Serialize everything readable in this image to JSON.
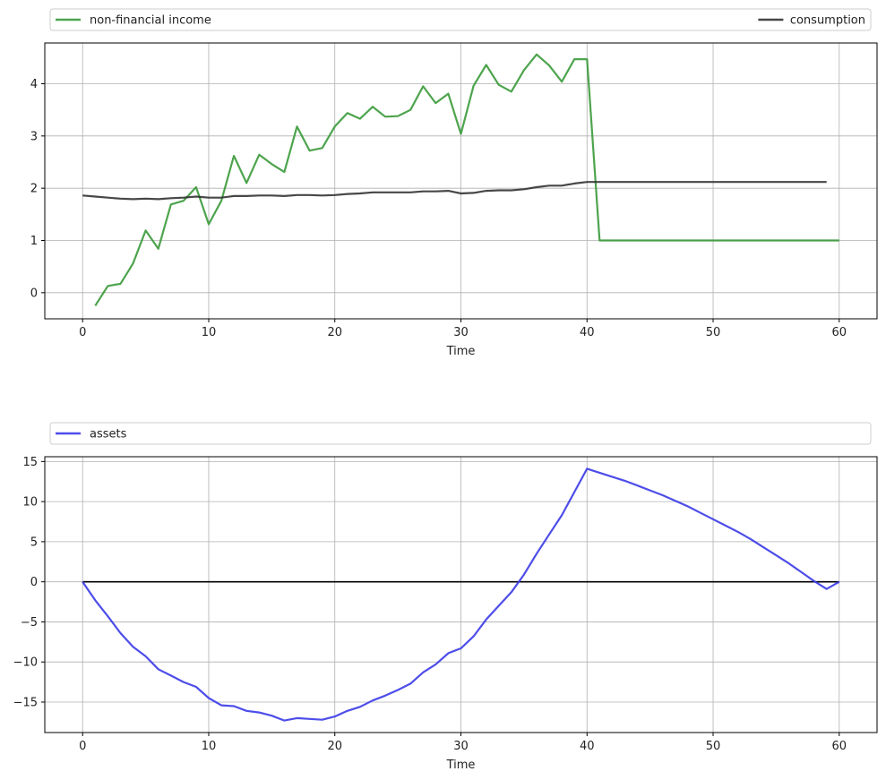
{
  "chart_data": [
    {
      "type": "line",
      "xlabel": "Time",
      "xlim": [
        -3,
        63
      ],
      "ylim": [
        -0.5,
        4.78
      ],
      "xticks": [
        0,
        10,
        20,
        30,
        40,
        50,
        60
      ],
      "yticks": [
        0,
        1,
        2,
        3,
        4
      ],
      "grid": true,
      "legend": {
        "placement": "above",
        "mode": "expand"
      },
      "series": [
        {
          "name": "non-financial income",
          "color": "#3a9a3a",
          "x": [
            1,
            2,
            3,
            4,
            5,
            6,
            7,
            8,
            9,
            10,
            11,
            12,
            13,
            14,
            15,
            16,
            17,
            18,
            19,
            20,
            21,
            22,
            23,
            24,
            25,
            26,
            27,
            28,
            29,
            30,
            31,
            32,
            33,
            34,
            35,
            36,
            37,
            38,
            39,
            40,
            41,
            42,
            43,
            44,
            45,
            46,
            47,
            48,
            49,
            50,
            51,
            52,
            53,
            54,
            55,
            56,
            57,
            58,
            59,
            60
          ],
          "y": [
            -0.25,
            0.13,
            0.17,
            0.56,
            1.19,
            0.84,
            1.69,
            1.76,
            2.02,
            1.31,
            1.76,
            2.62,
            2.1,
            2.64,
            2.46,
            2.31,
            3.18,
            2.72,
            2.77,
            3.18,
            3.44,
            3.33,
            3.56,
            3.37,
            3.38,
            3.5,
            3.95,
            3.63,
            3.81,
            3.04,
            3.96,
            4.36,
            3.98,
            3.85,
            4.26,
            4.56,
            4.35,
            4.04,
            4.47,
            4.47,
            1.0,
            1.0,
            1.0,
            1.0,
            1.0,
            1.0,
            1.0,
            1.0,
            1.0,
            1.0,
            1.0,
            1.0,
            1.0,
            1.0,
            1.0,
            1.0,
            1.0,
            1.0,
            1.0,
            1.0
          ]
        },
        {
          "name": "consumption",
          "color": "#333333",
          "x": [
            0,
            1,
            2,
            3,
            4,
            5,
            6,
            7,
            8,
            9,
            10,
            11,
            12,
            13,
            14,
            15,
            16,
            17,
            18,
            19,
            20,
            21,
            22,
            23,
            24,
            25,
            26,
            27,
            28,
            29,
            30,
            31,
            32,
            33,
            34,
            35,
            36,
            37,
            38,
            39,
            40,
            41,
            42,
            43,
            44,
            45,
            46,
            47,
            48,
            49,
            50,
            51,
            52,
            53,
            54,
            55,
            56,
            57,
            58,
            59
          ],
          "y": [
            1.86,
            1.84,
            1.82,
            1.8,
            1.79,
            1.8,
            1.79,
            1.81,
            1.82,
            1.84,
            1.82,
            1.82,
            1.85,
            1.85,
            1.86,
            1.86,
            1.85,
            1.87,
            1.87,
            1.86,
            1.87,
            1.89,
            1.9,
            1.92,
            1.92,
            1.92,
            1.92,
            1.94,
            1.94,
            1.95,
            1.9,
            1.91,
            1.95,
            1.96,
            1.96,
            1.98,
            2.02,
            2.05,
            2.05,
            2.09,
            2.12,
            2.12,
            2.12,
            2.12,
            2.12,
            2.12,
            2.12,
            2.12,
            2.12,
            2.12,
            2.12,
            2.12,
            2.12,
            2.12,
            2.12,
            2.12,
            2.12,
            2.12,
            2.12,
            2.12
          ]
        }
      ]
    },
    {
      "type": "line",
      "xlabel": "Time",
      "xlim": [
        -3,
        63
      ],
      "ylim": [
        -18.8,
        15.6
      ],
      "xticks": [
        0,
        10,
        20,
        30,
        40,
        50,
        60
      ],
      "yticks": [
        -15,
        -10,
        -5,
        0,
        5,
        10,
        15
      ],
      "grid": true,
      "legend": {
        "placement": "above",
        "mode": "expand"
      },
      "hline": {
        "y": 0,
        "color": "#000000"
      },
      "series": [
        {
          "name": "assets",
          "color": "#3a3ae8",
          "x": [
            0,
            1,
            2,
            3,
            4,
            5,
            6,
            7,
            8,
            9,
            10,
            11,
            12,
            13,
            14,
            15,
            16,
            17,
            18,
            19,
            20,
            21,
            22,
            23,
            24,
            25,
            26,
            27,
            28,
            29,
            30,
            31,
            32,
            33,
            34,
            35,
            36,
            37,
            38,
            39,
            40,
            41,
            42,
            43,
            44,
            45,
            46,
            47,
            48,
            49,
            50,
            51,
            52,
            53,
            54,
            55,
            56,
            57,
            58,
            59,
            60
          ],
          "y": [
            0,
            -2.3,
            -4.3,
            -6.4,
            -8.1,
            -9.3,
            -10.9,
            -11.7,
            -12.5,
            -13.1,
            -14.5,
            -15.4,
            -15.5,
            -16.1,
            -16.3,
            -16.7,
            -17.3,
            -17.0,
            -17.1,
            -17.2,
            -16.8,
            -16.1,
            -15.6,
            -14.8,
            -14.2,
            -13.5,
            -12.7,
            -11.3,
            -10.3,
            -8.9,
            -8.3,
            -6.8,
            -4.7,
            -3.0,
            -1.3,
            0.9,
            3.5,
            5.9,
            8.3,
            11.2,
            14.1,
            13.6,
            13.1,
            12.6,
            12.0,
            11.4,
            10.8,
            10.1,
            9.4,
            8.6,
            7.8,
            7.0,
            6.2,
            5.3,
            4.3,
            3.3,
            2.3,
            1.2,
            0.1,
            -0.9,
            0.0
          ]
        }
      ]
    }
  ]
}
